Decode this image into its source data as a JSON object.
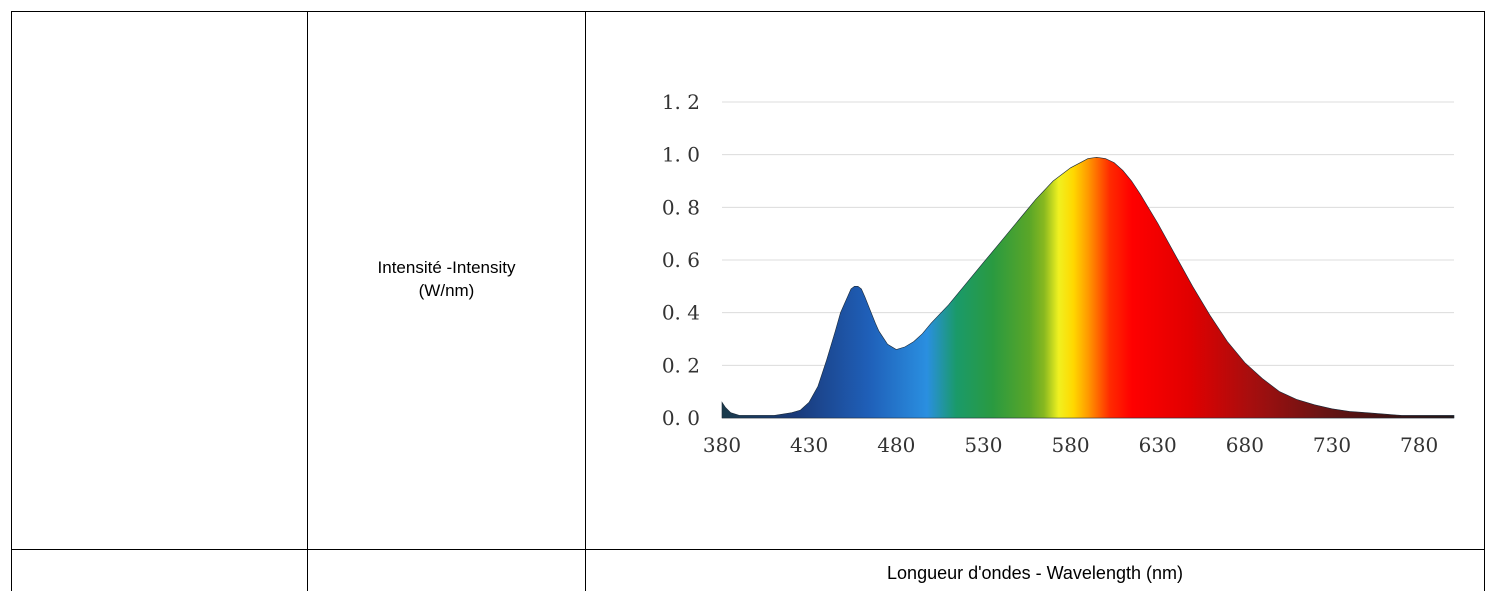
{
  "table": {
    "ylabel_line1": "Intensité -Intensity",
    "ylabel_line2": "(W/nm)",
    "xlabel": "Longueur d'ondes - Wavelength (nm)"
  },
  "chart_data": {
    "type": "area",
    "title": "",
    "xlabel": "Longueur d'ondes - Wavelength (nm)",
    "ylabel": "Intensité -Intensity (W/nm)",
    "xlim": [
      380,
      800
    ],
    "ylim": [
      0,
      1.2
    ],
    "x_ticks": [
      "380",
      "430",
      "480",
      "530",
      "580",
      "630",
      "680",
      "730",
      "780"
    ],
    "y_ticks": [
      "0. 0",
      "0. 2",
      "0. 4",
      "0. 6",
      "0. 8",
      "1. 0",
      "1. 2"
    ],
    "x_tick_values": [
      380,
      430,
      480,
      530,
      580,
      630,
      680,
      730,
      780
    ],
    "y_tick_values": [
      0,
      0.2,
      0.4,
      0.6,
      0.8,
      1.0,
      1.2
    ],
    "grid": true,
    "fill": "visible-spectrum gradient",
    "series": [
      {
        "x": [
          380,
          382,
          385,
          390,
          400,
          410,
          420,
          425,
          430,
          435,
          440,
          445,
          448,
          450,
          452,
          454,
          456,
          458,
          460,
          462,
          465,
          468,
          470,
          475,
          480,
          485,
          490,
          495,
          500,
          510,
          520,
          530,
          540,
          550,
          560,
          570,
          580,
          590,
          595,
          600,
          605,
          610,
          615,
          620,
          630,
          640,
          650,
          660,
          670,
          680,
          690,
          700,
          710,
          720,
          730,
          740,
          750,
          760,
          770,
          780,
          790,
          800
        ],
        "values": [
          0.06,
          0.04,
          0.02,
          0.01,
          0.01,
          0.01,
          0.02,
          0.03,
          0.06,
          0.12,
          0.22,
          0.33,
          0.4,
          0.43,
          0.46,
          0.49,
          0.5,
          0.5,
          0.49,
          0.46,
          0.41,
          0.36,
          0.33,
          0.28,
          0.26,
          0.27,
          0.29,
          0.32,
          0.36,
          0.43,
          0.51,
          0.59,
          0.67,
          0.75,
          0.83,
          0.9,
          0.95,
          0.985,
          0.99,
          0.985,
          0.97,
          0.94,
          0.9,
          0.85,
          0.74,
          0.62,
          0.5,
          0.39,
          0.29,
          0.21,
          0.15,
          0.1,
          0.07,
          0.05,
          0.035,
          0.025,
          0.02,
          0.015,
          0.01,
          0.01,
          0.01,
          0.01
        ]
      }
    ]
  }
}
